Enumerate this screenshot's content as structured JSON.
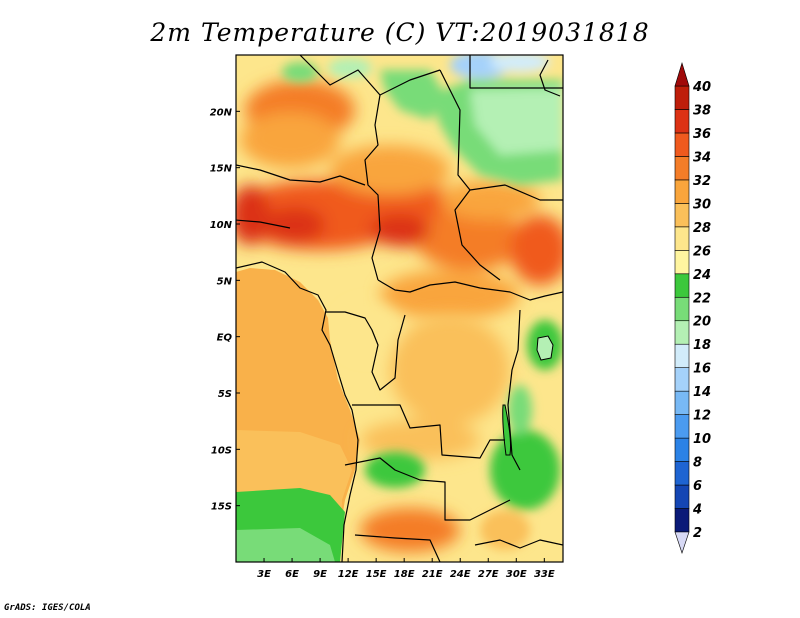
{
  "title": "2m Temperature (C) VT:2019031818",
  "credit": "GrADS: IGES/COLA",
  "map": {
    "lon_range": [
      0,
      35
    ],
    "lat_range": [
      -20,
      25
    ],
    "x_ticks": [
      {
        "lon": 3,
        "label": "3E"
      },
      {
        "lon": 6,
        "label": "6E"
      },
      {
        "lon": 9,
        "label": "9E"
      },
      {
        "lon": 12,
        "label": "12E"
      },
      {
        "lon": 15,
        "label": "15E"
      },
      {
        "lon": 18,
        "label": "18E"
      },
      {
        "lon": 21,
        "label": "21E"
      },
      {
        "lon": 24,
        "label": "24E"
      },
      {
        "lon": 27,
        "label": "27E"
      },
      {
        "lon": 30,
        "label": "30E"
      },
      {
        "lon": 33,
        "label": "33E"
      }
    ],
    "y_ticks": [
      {
        "lat": 20,
        "label": "20N"
      },
      {
        "lat": 15,
        "label": "15N"
      },
      {
        "lat": 10,
        "label": "10N"
      },
      {
        "lat": 5,
        "label": "5N"
      },
      {
        "lat": 0,
        "label": "EQ"
      },
      {
        "lat": -5,
        "label": "5S"
      },
      {
        "lat": -10,
        "label": "10S"
      },
      {
        "lat": -15,
        "label": "15S"
      }
    ]
  },
  "colorbar": {
    "levels": [
      {
        "label": "2",
        "color": "#d7d9f5"
      },
      {
        "label": "4",
        "color": "#0a1a78"
      },
      {
        "label": "6",
        "color": "#1446b4"
      },
      {
        "label": "8",
        "color": "#1e64d2"
      },
      {
        "label": "10",
        "color": "#2b82e6"
      },
      {
        "label": "12",
        "color": "#4b9bf0"
      },
      {
        "label": "14",
        "color": "#78b9f5"
      },
      {
        "label": "16",
        "color": "#a5d2fa"
      },
      {
        "label": "18",
        "color": "#d2ecfa"
      },
      {
        "label": "20",
        "color": "#b4f0b4"
      },
      {
        "label": "22",
        "color": "#78dc78"
      },
      {
        "label": "24",
        "color": "#3cc83c"
      },
      {
        "label": "26",
        "color": "#fff5a0"
      },
      {
        "label": "28",
        "color": "#fde68c"
      },
      {
        "label": "30",
        "color": "#fac05a"
      },
      {
        "label": "32",
        "color": "#f9a53c"
      },
      {
        "label": "34",
        "color": "#f47d28"
      },
      {
        "label": "36",
        "color": "#f05a1e"
      },
      {
        "label": "38",
        "color": "#dc3214"
      },
      {
        "label": "40",
        "color": "#be1e0a"
      }
    ],
    "over_color": "#a00a0a",
    "under_color": "#d7d9f5"
  }
}
